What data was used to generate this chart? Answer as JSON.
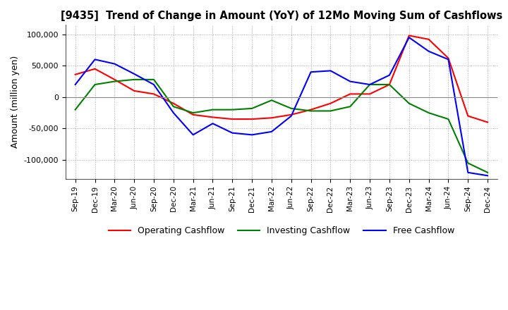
{
  "title": "[9435]  Trend of Change in Amount (YoY) of 12Mo Moving Sum of Cashflows",
  "ylabel": "Amount (million yen)",
  "background_color": "#ffffff",
  "grid_color": "#aaaaaa",
  "ylim": [
    -130000,
    115000
  ],
  "yticks": [
    -100000,
    -50000,
    0,
    50000,
    100000
  ],
  "x_labels": [
    "Sep-19",
    "Dec-19",
    "Mar-20",
    "Jun-20",
    "Sep-20",
    "Dec-20",
    "Mar-21",
    "Jun-21",
    "Sep-21",
    "Dec-21",
    "Mar-22",
    "Jun-22",
    "Sep-22",
    "Dec-22",
    "Mar-23",
    "Jun-23",
    "Sep-23",
    "Dec-23",
    "Mar-24",
    "Jun-24",
    "Sep-24",
    "Dec-24"
  ],
  "operating": [
    36000,
    45000,
    28000,
    10000,
    5000,
    -10000,
    -28000,
    -32000,
    -35000,
    -35000,
    -33000,
    -28000,
    -20000,
    -10000,
    5000,
    5000,
    20000,
    98000,
    92000,
    62000,
    -30000,
    -40000
  ],
  "investing": [
    -20000,
    20000,
    25000,
    28000,
    28000,
    -15000,
    -25000,
    -20000,
    -20000,
    -18000,
    -5000,
    -18000,
    -22000,
    -22000,
    -15000,
    20000,
    20000,
    -10000,
    -25000,
    -35000,
    -105000,
    -120000
  ],
  "free": [
    20000,
    60000,
    53000,
    37000,
    20000,
    -25000,
    -60000,
    -42000,
    -57000,
    -60000,
    -55000,
    -30000,
    40000,
    42000,
    25000,
    20000,
    35000,
    95000,
    73000,
    60000,
    -120000,
    -125000
  ],
  "op_color": "#ff0000",
  "inv_color": "#008000",
  "free_color": "#0000ff",
  "legend_labels": [
    "Operating Cashflow",
    "Investing Cashflow",
    "Free Cashflow"
  ]
}
